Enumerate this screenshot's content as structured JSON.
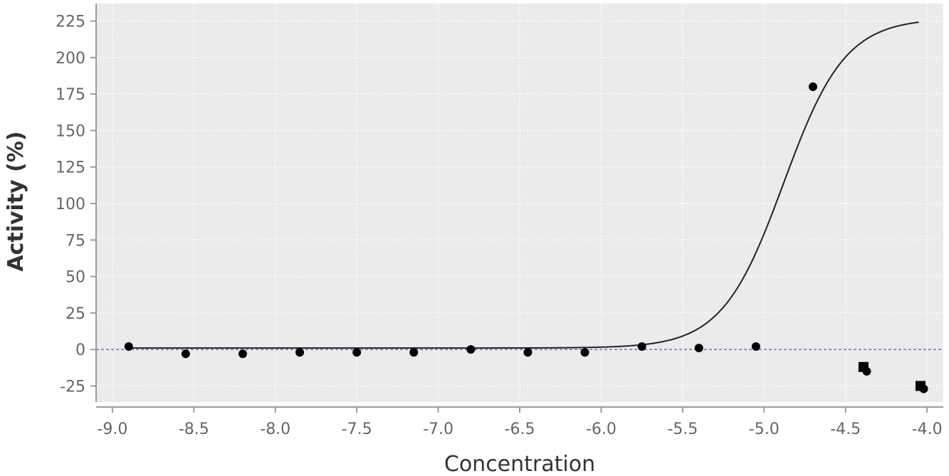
{
  "chart_data": {
    "type": "scatter",
    "title": "",
    "xlabel": "Concentration",
    "ylabel": "Activity (%)",
    "xlim": [
      -9.1,
      -3.9
    ],
    "ylim": [
      -36,
      237
    ],
    "x_ticks": [
      "-9.0",
      "-8.5",
      "-8.0",
      "-7.5",
      "-7.0",
      "-6.5",
      "-6.0",
      "-5.5",
      "-5.0",
      "-4.5",
      "-4.0"
    ],
    "y_ticks": [
      "225",
      "200",
      "175",
      "150",
      "125",
      "100",
      "75",
      "50",
      "25",
      "0",
      "-25"
    ],
    "grid": true,
    "background": "#ebebeb",
    "baseline": {
      "y": 0,
      "color": "#6a6ad8",
      "style": "dashed"
    },
    "series": [
      {
        "marker": "circle",
        "color": "#000000",
        "points": [
          [
            -8.9,
            2
          ],
          [
            -8.55,
            -3
          ],
          [
            -8.2,
            -3
          ],
          [
            -7.85,
            -2
          ],
          [
            -7.5,
            -2
          ],
          [
            -7.15,
            -2
          ],
          [
            -6.8,
            0
          ],
          [
            -6.45,
            -2
          ],
          [
            -6.1,
            -2
          ],
          [
            -5.75,
            2
          ],
          [
            -5.4,
            1
          ],
          [
            -5.05,
            2
          ],
          [
            -4.7,
            180
          ],
          [
            -4.37,
            -15
          ],
          [
            -4.02,
            -27
          ]
        ]
      },
      {
        "marker": "square",
        "color": "#000000",
        "points": [
          [
            -4.39,
            -12
          ],
          [
            -4.04,
            -25
          ]
        ]
      }
    ],
    "fit_curve": {
      "type": "sigmoid",
      "color": "#222222",
      "x_range": [
        -8.9,
        -4.05
      ],
      "bottom": 1,
      "top": 227,
      "logEC50": -4.88,
      "hill": 2.3
    }
  }
}
